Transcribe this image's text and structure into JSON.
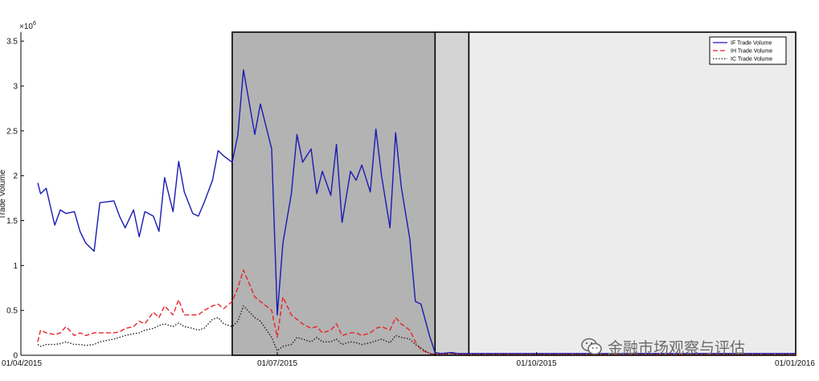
{
  "chart_data": {
    "type": "line",
    "title": "",
    "xlabel": "",
    "ylabel": "Trade Volume",
    "y_scale_label": "×10",
    "y_scale_exponent": "6",
    "ylim": [
      0,
      3.6
    ],
    "yticks": [
      "0",
      "0.5",
      "1",
      "1.5",
      "2",
      "2.5",
      "3",
      "3.5"
    ],
    "ytick_values": [
      0,
      0.5,
      1,
      1.5,
      2,
      2.5,
      3,
      3.5
    ],
    "xlim": [
      "2015-04-01",
      "2016-01-01"
    ],
    "xticks": [
      "01/04/2015",
      "01/07/2015",
      "01/10/2015",
      "01/01/2016"
    ],
    "xtick_dates": [
      "2015-04-01",
      "2015-07-01",
      "2015-10-01",
      "2016-01-01"
    ],
    "grid": false,
    "legend_position": "top-right",
    "shaded_regions": [
      {
        "start": "2015-06-15",
        "end": "2015-08-26",
        "color": "#b3b3b3",
        "border": "#000000"
      },
      {
        "start": "2015-08-26",
        "end": "2015-09-07",
        "color": "#d4d4d4",
        "border": "#000000"
      },
      {
        "start": "2015-09-07",
        "end": "2016-01-01",
        "color": "#ececed",
        "border": "#000000"
      }
    ],
    "x": [
      "2015-04-07",
      "2015-04-08",
      "2015-04-10",
      "2015-04-13",
      "2015-04-15",
      "2015-04-17",
      "2015-04-20",
      "2015-04-22",
      "2015-04-24",
      "2015-04-27",
      "2015-04-29",
      "2015-05-04",
      "2015-05-06",
      "2015-05-08",
      "2015-05-11",
      "2015-05-13",
      "2015-05-15",
      "2015-05-18",
      "2015-05-20",
      "2015-05-22",
      "2015-05-25",
      "2015-05-27",
      "2015-05-29",
      "2015-06-01",
      "2015-06-03",
      "2015-06-05",
      "2015-06-08",
      "2015-06-10",
      "2015-06-12",
      "2015-06-15",
      "2015-06-17",
      "2015-06-19",
      "2015-06-23",
      "2015-06-25",
      "2015-06-29",
      "2015-07-01",
      "2015-07-03",
      "2015-07-06",
      "2015-07-08",
      "2015-07-10",
      "2015-07-13",
      "2015-07-15",
      "2015-07-17",
      "2015-07-20",
      "2015-07-22",
      "2015-07-24",
      "2015-07-27",
      "2015-07-29",
      "2015-07-31",
      "2015-08-03",
      "2015-08-05",
      "2015-08-07",
      "2015-08-10",
      "2015-08-12",
      "2015-08-14",
      "2015-08-17",
      "2015-08-19",
      "2015-08-21",
      "2015-08-24",
      "2015-08-26",
      "2015-08-28",
      "2015-09-01",
      "2015-09-03",
      "2015-09-07",
      "2015-09-09",
      "2015-09-15",
      "2015-09-22",
      "2015-10-01",
      "2015-10-15",
      "2015-11-01",
      "2015-11-15",
      "2015-12-01",
      "2015-12-15",
      "2016-01-01"
    ],
    "series": [
      {
        "name": "IF Trade Volume",
        "color": "#1a1ab5",
        "dash": "solid",
        "values": [
          1.92,
          1.8,
          1.86,
          1.45,
          1.62,
          1.58,
          1.6,
          1.38,
          1.25,
          1.16,
          1.7,
          1.72,
          1.55,
          1.42,
          1.62,
          1.32,
          1.6,
          1.55,
          1.38,
          1.98,
          1.6,
          2.16,
          1.82,
          1.58,
          1.55,
          1.7,
          1.95,
          2.28,
          2.22,
          2.15,
          2.45,
          3.18,
          2.46,
          2.8,
          2.3,
          0.45,
          1.25,
          1.8,
          2.46,
          2.15,
          2.3,
          1.8,
          2.05,
          1.78,
          2.35,
          1.48,
          2.05,
          1.95,
          2.12,
          1.82,
          2.52,
          2.0,
          1.42,
          2.48,
          1.88,
          1.3,
          0.6,
          0.57,
          0.22,
          0.03,
          0.02,
          0.03,
          0.02,
          0.02,
          0.02,
          0.02,
          0.02,
          0.02,
          0.02,
          0.02,
          0.02,
          0.02,
          0.02,
          0.02
        ]
      },
      {
        "name": "IH Trade Volume",
        "color": "#e8232a",
        "dash": "dashed",
        "values": [
          0.15,
          0.28,
          0.25,
          0.23,
          0.25,
          0.32,
          0.22,
          0.25,
          0.22,
          0.25,
          0.25,
          0.25,
          0.26,
          0.3,
          0.32,
          0.38,
          0.35,
          0.48,
          0.42,
          0.55,
          0.45,
          0.62,
          0.45,
          0.45,
          0.45,
          0.5,
          0.55,
          0.57,
          0.52,
          0.6,
          0.75,
          0.95,
          0.65,
          0.6,
          0.5,
          0.2,
          0.65,
          0.45,
          0.4,
          0.35,
          0.3,
          0.32,
          0.25,
          0.28,
          0.35,
          0.22,
          0.25,
          0.25,
          0.22,
          0.25,
          0.3,
          0.32,
          0.28,
          0.42,
          0.35,
          0.28,
          0.15,
          0.06,
          0.02,
          0.01,
          0.01,
          0.02,
          0.01,
          0.01,
          0.01,
          0.01,
          0.01,
          0.01,
          0.01,
          0.01,
          0.01,
          0.01,
          0.01,
          0.01
        ]
      },
      {
        "name": "IC Trade Volume",
        "color": "#222222",
        "dash": "dotted",
        "values": [
          0.12,
          0.1,
          0.12,
          0.12,
          0.13,
          0.15,
          0.12,
          0.12,
          0.11,
          0.12,
          0.15,
          0.18,
          0.2,
          0.22,
          0.24,
          0.25,
          0.28,
          0.3,
          0.33,
          0.35,
          0.32,
          0.36,
          0.32,
          0.3,
          0.28,
          0.3,
          0.4,
          0.42,
          0.35,
          0.32,
          0.38,
          0.55,
          0.42,
          0.38,
          0.2,
          0.05,
          0.1,
          0.12,
          0.2,
          0.18,
          0.15,
          0.2,
          0.15,
          0.15,
          0.18,
          0.12,
          0.15,
          0.14,
          0.12,
          0.14,
          0.16,
          0.18,
          0.14,
          0.22,
          0.2,
          0.18,
          0.12,
          0.08,
          0.02,
          0.01,
          0.01,
          0.02,
          0.01,
          0.01,
          0.01,
          0.01,
          0.01,
          0.01,
          0.01,
          0.01,
          0.01,
          0.01,
          0.01,
          0.01
        ]
      }
    ]
  },
  "watermark": {
    "text": "金融市场观察与评估",
    "icon": "wechat-icon"
  }
}
